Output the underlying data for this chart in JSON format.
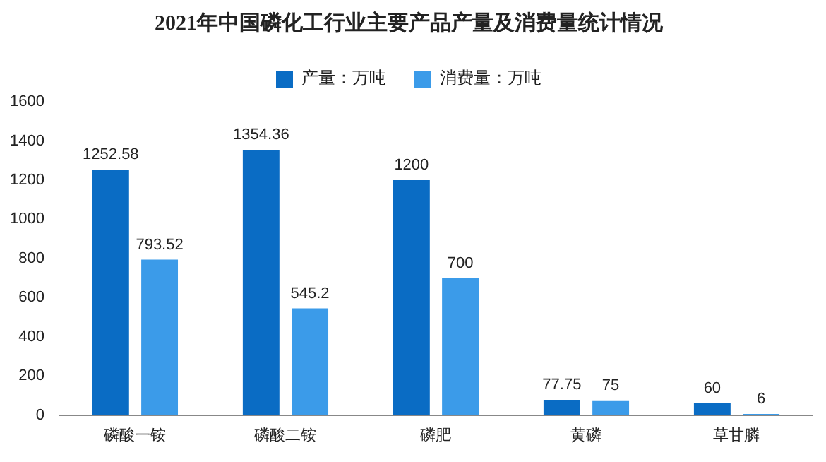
{
  "chart_data": {
    "type": "bar",
    "title": "2021年中国磷化工行业主要产品产量及消费量统计情况",
    "categories": [
      "磷酸一铵",
      "磷酸二铵",
      "磷肥",
      "黄磷",
      "草甘膦"
    ],
    "series": [
      {
        "name": "产量：万吨",
        "color": "#0a6cc4",
        "values": [
          1252.58,
          1354.36,
          1200,
          77.75,
          60
        ]
      },
      {
        "name": "消费量：万吨",
        "color": "#3b9be9",
        "values": [
          793.52,
          545.2,
          700,
          75,
          6
        ]
      }
    ],
    "ylim": [
      0,
      1600
    ],
    "yticks": [
      0,
      200,
      400,
      600,
      800,
      1000,
      1200,
      1400,
      1600
    ],
    "grid": false,
    "legend": "top",
    "data_labels": true
  }
}
